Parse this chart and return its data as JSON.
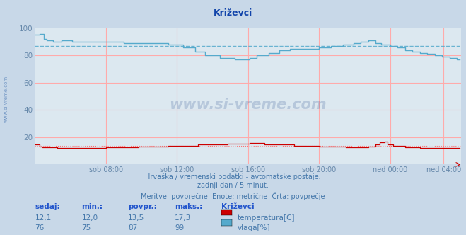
{
  "title": "Križevci",
  "background_color": "#c8d8e8",
  "plot_bg_color": "#dce8f0",
  "grid_h_color": "#ffaaaa",
  "grid_v_color": "#ffaaaa",
  "ylabel_color": "#6688aa",
  "xlabel_color": "#6688aa",
  "title_color": "#1144aa",
  "text_color": "#4477aa",
  "stat_header_color": "#2255cc",
  "xlim": [
    0,
    288
  ],
  "ylim": [
    0,
    100
  ],
  "yticks": [
    20,
    40,
    60,
    80,
    100
  ],
  "xtick_labels": [
    "sob 08:00",
    "sob 12:00",
    "sob 16:00",
    "sob 20:00",
    "ned 00:00",
    "ned 04:00"
  ],
  "xtick_positions": [
    48,
    96,
    144,
    192,
    240,
    276
  ],
  "temp_color": "#cc0000",
  "humidity_color": "#55aacc",
  "temp_avg_color": "#ff6666",
  "humidity_avg_color": "#55aacc",
  "temp_avg": 13.5,
  "humidity_avg": 87,
  "footer_line1": "Hrvaška / vremenski podatki - avtomatske postaje.",
  "footer_line2": "zadnji dan / 5 minut.",
  "footer_line3": "Meritve: povprečne  Enote: metrične  Črta: povprečje",
  "legend_title": "Križevci",
  "stat_headers": [
    "sedaj:",
    "min.:",
    "povpr.:",
    "maks.:"
  ],
  "temp_stats": [
    "12,1",
    "12,0",
    "13,5",
    "17,3"
  ],
  "humidity_stats": [
    "76",
    "75",
    "87",
    "99"
  ],
  "label_temp": "temperatura[C]",
  "label_humidity": "vlaga[%]",
  "watermark": "www.si-vreme.com",
  "side_watermark": "www.si-vreme.com"
}
